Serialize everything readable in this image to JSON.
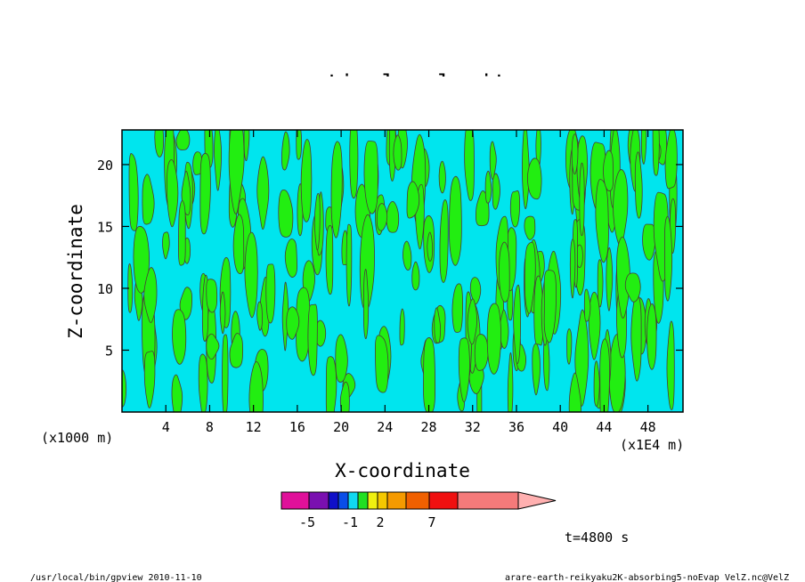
{
  "chart_data": {
    "type": "heatmap",
    "title": "vertical velocity",
    "xlabel": "X-coordinate",
    "ylabel": "Z-coordinate",
    "x_unit_left": "(x1000 m)",
    "x_unit_right": "(x1E4 m)",
    "x_ticks": [
      "4",
      "8",
      "12",
      "16",
      "20",
      "24",
      "28",
      "32",
      "36",
      "40",
      "44",
      "48"
    ],
    "y_ticks": [
      "5",
      "10",
      "15",
      "20"
    ],
    "xlim": [
      0,
      51.2
    ],
    "ylim": [
      0,
      22.8
    ],
    "grid": false,
    "field_colors": [
      "#00e5ee",
      "#22ee11"
    ],
    "colorbar": {
      "labels": [
        "-5",
        "-1",
        "2",
        "7"
      ],
      "colors": [
        "#e0109a",
        "#7a10b0",
        "#1010c8",
        "#0a4ee8",
        "#10d8f0",
        "#22e022",
        "#f0f010",
        "#f5c800",
        "#f59a00",
        "#f06000",
        "#f01010",
        "#f57a7a",
        "#ffb0b0"
      ]
    },
    "annotation": "t=4800 s"
  },
  "footer": {
    "left": "/usr/local/bin/gpview   2010-11-10",
    "right": "arare-earth-reikyaku2K-absorbing5-noEvap_VelZ.nc@VelZ"
  }
}
